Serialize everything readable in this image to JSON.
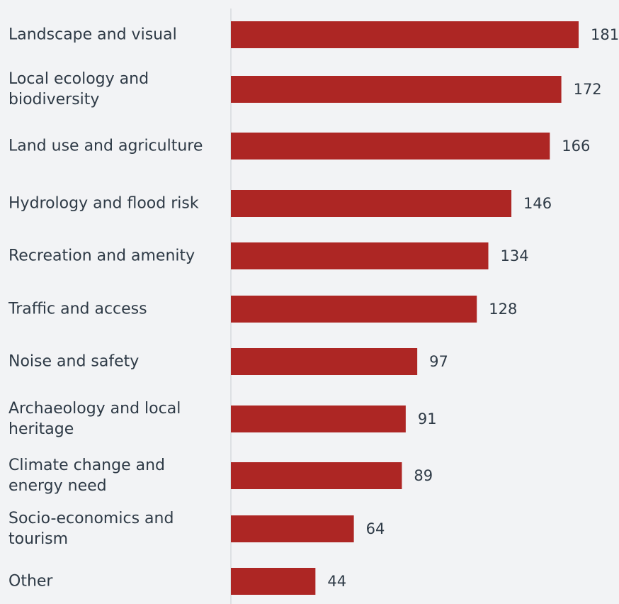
{
  "chart_data": {
    "type": "bar",
    "orientation": "horizontal",
    "title": "",
    "xlabel": "",
    "ylabel": "",
    "categories": [
      [
        "Landscape and visual"
      ],
      [
        "Local ecology and",
        "biodiversity"
      ],
      [
        "Land use and agriculture"
      ],
      [
        "Hydrology and flood risk"
      ],
      [
        "Recreation and amenity"
      ],
      [
        "Traffic and access"
      ],
      [
        "Noise and safety"
      ],
      [
        "Archaeology and local",
        "heritage"
      ],
      [
        "Climate change and",
        "energy need"
      ],
      [
        "Socio-economics and",
        "tourism"
      ],
      [
        "Other"
      ]
    ],
    "values": [
      181,
      172,
      166,
      146,
      134,
      128,
      97,
      91,
      89,
      64,
      44
    ],
    "xlim": [
      0,
      181
    ],
    "grid": false,
    "data_labels": true,
    "bar_color": "#ad2624",
    "axis_line_color": "#d6d9dd"
  }
}
